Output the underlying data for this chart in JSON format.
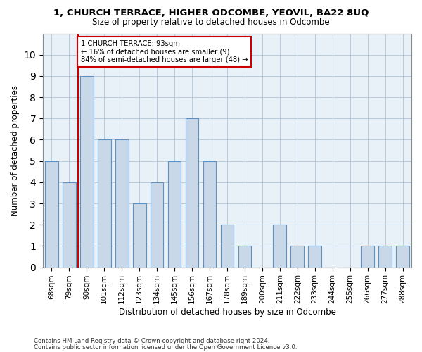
{
  "title": "1, CHURCH TERRACE, HIGHER ODCOMBE, YEOVIL, BA22 8UQ",
  "subtitle": "Size of property relative to detached houses in Odcombe",
  "xlabel": "Distribution of detached houses by size in Odcombe",
  "ylabel": "Number of detached properties",
  "footnote1": "Contains HM Land Registry data © Crown copyright and database right 2024.",
  "footnote2": "Contains public sector information licensed under the Open Government Licence v3.0.",
  "bins": [
    "68sqm",
    "79sqm",
    "90sqm",
    "101sqm",
    "112sqm",
    "123sqm",
    "134sqm",
    "145sqm",
    "156sqm",
    "167sqm",
    "178sqm",
    "189sqm",
    "200sqm",
    "211sqm",
    "222sqm",
    "233sqm",
    "244sqm",
    "255sqm",
    "266sqm",
    "277sqm",
    "288sqm"
  ],
  "counts": [
    5,
    4,
    9,
    6,
    6,
    3,
    4,
    5,
    7,
    5,
    2,
    1,
    0,
    2,
    1,
    1,
    0,
    0,
    1,
    1,
    1
  ],
  "bar_color": "#c8d8e8",
  "bar_edge_color": "#6090c0",
  "plot_bg_color": "#e8f0f8",
  "grid_color": "#b0c4d8",
  "vline_color": "#cc0000",
  "annotation_box_edge": "#cc0000",
  "annotation_box_color": "#ffffff",
  "ylim": [
    0,
    11
  ],
  "yticks": [
    0,
    1,
    2,
    3,
    4,
    5,
    6,
    7,
    8,
    9,
    10,
    11
  ],
  "property_bin_index": 2,
  "annotation_line1": "1 CHURCH TERRACE: 93sqm",
  "annotation_line2": "← 16% of detached houses are smaller (9)",
  "annotation_line3": "84% of semi-detached houses are larger (48) →"
}
